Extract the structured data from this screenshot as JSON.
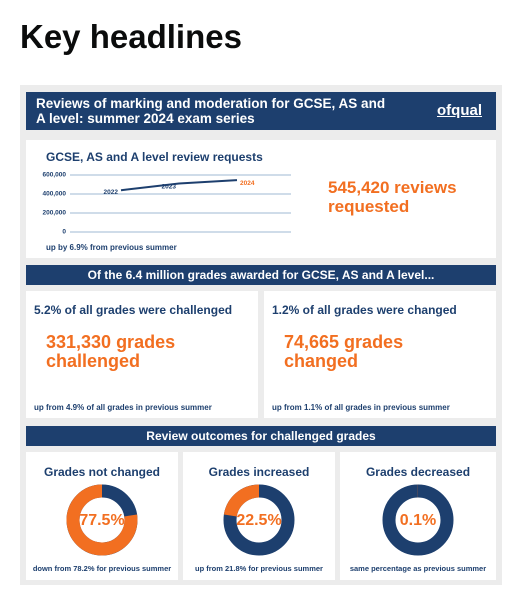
{
  "page_title": "Key headlines",
  "banner": {
    "title": "Reviews of marking and moderation for GCSE, AS and A level: summer 2024 exam series",
    "logo": "ofqual"
  },
  "requests": {
    "chart": {
      "type": "line",
      "title": "GCSE, AS and A level review requests",
      "x": [
        "2022",
        "2023",
        "2024"
      ],
      "values": [
        440000,
        510000,
        545420
      ],
      "color": "#1d3f6e",
      "ylim": [
        0,
        600000
      ],
      "yticks": [
        {
          "value": 0,
          "label": "0"
        },
        {
          "value": 200000,
          "label": "200,000"
        },
        {
          "value": 400000,
          "label": "400,000"
        },
        {
          "value": 600000,
          "label": "600,000"
        }
      ],
      "grid": true
    },
    "note": "up by 6.9% from previous summer",
    "headline": "545,420 reviews requested"
  },
  "grades_banner": "Of the 6.4 million grades awarded for GCSE, AS and A level...",
  "grades": [
    {
      "title": "5.2% of all grades were challenged",
      "headline": "331,330 grades challenged",
      "note": "up from 4.9% of all grades in previous summer"
    },
    {
      "title": "1.2% of all grades were changed",
      "headline": "74,665 grades changed",
      "note": "up from 1.1% of all grades in previous summer"
    }
  ],
  "outcomes_banner": "Review outcomes for challenged grades",
  "outcomes": [
    {
      "title": "Grades not changed",
      "chart": {
        "type": "pie",
        "values": [
          77.5
        ],
        "value_labels": [
          "77.5%"
        ],
        "color": "#f26f21"
      },
      "note": "down from 78.2% for previous summer"
    },
    {
      "title": "Grades increased",
      "chart": {
        "type": "pie",
        "values": [
          22.5
        ],
        "value_labels": [
          "22.5%"
        ],
        "color": "#f26f21"
      },
      "note": "up from 21.8% for previous summer"
    },
    {
      "title": "Grades decreased",
      "chart": {
        "type": "pie",
        "values": [
          0.1
        ],
        "value_labels": [
          "0.1%"
        ],
        "color": "#f26f21"
      },
      "note": "same percentage as previous summer"
    }
  ]
}
